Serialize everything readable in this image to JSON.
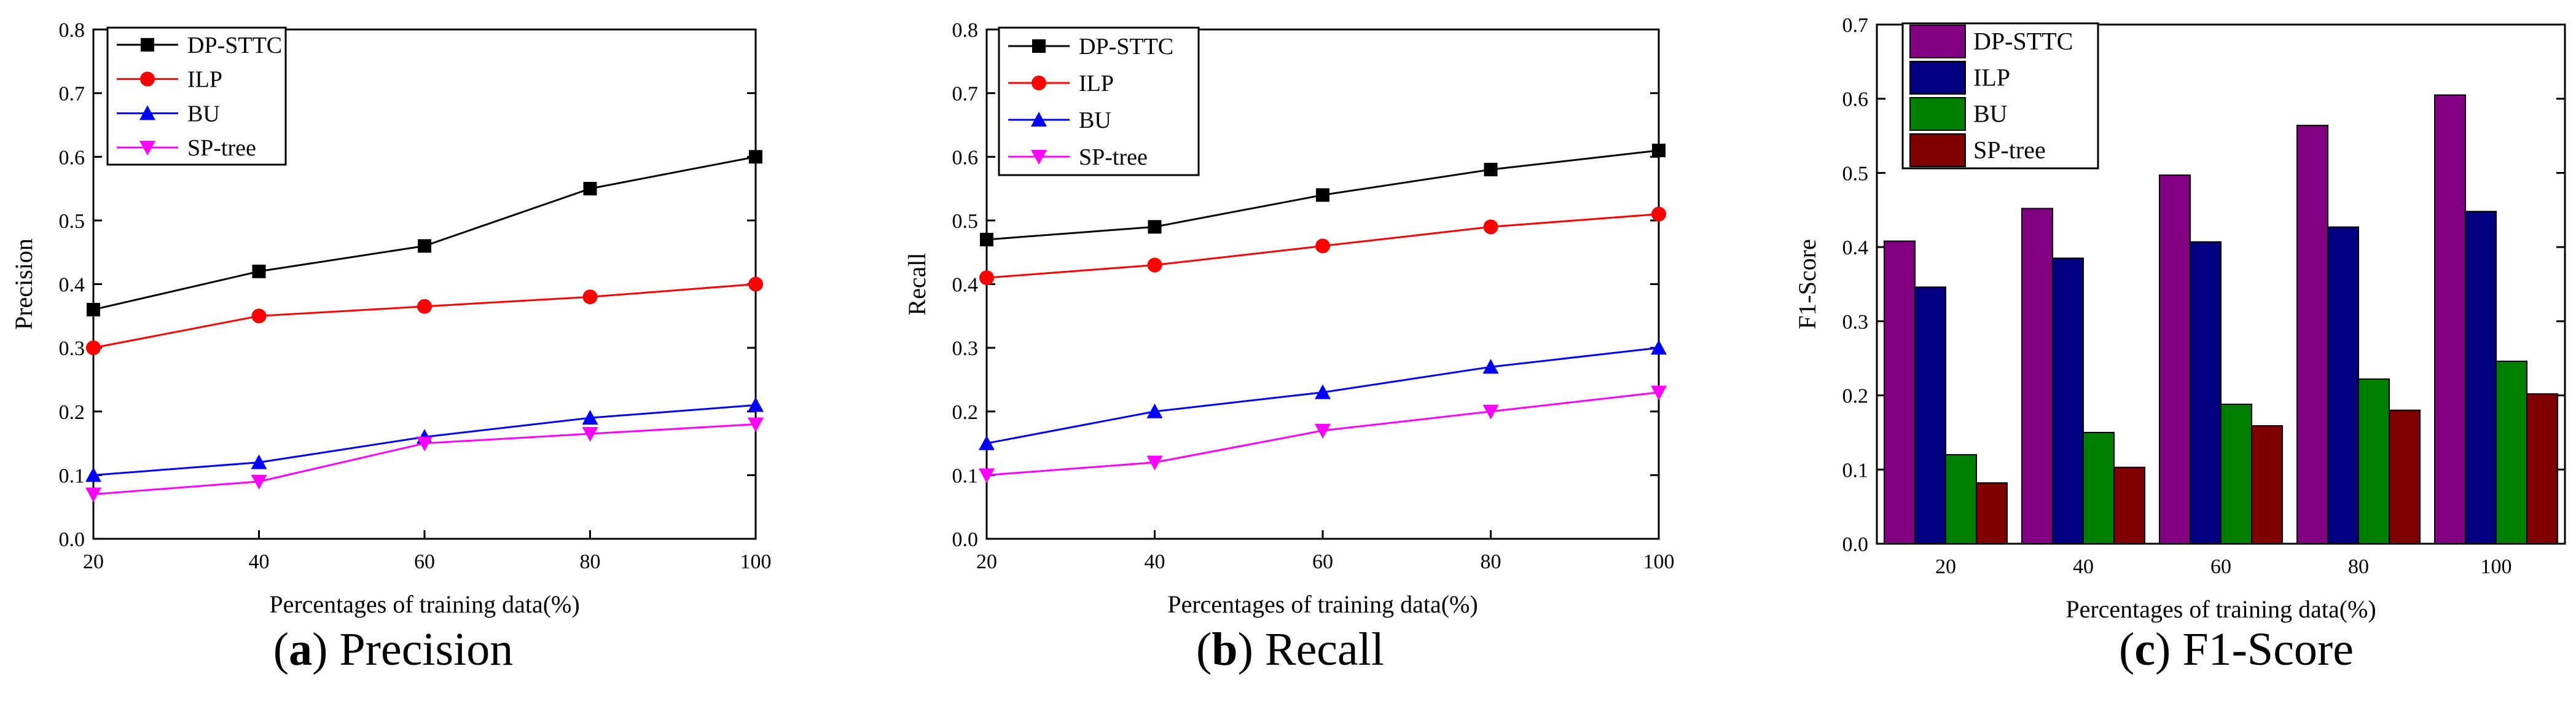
{
  "colors": {
    "DP-STTC": "#000000",
    "ILP": "#ff0000",
    "BU": "#0000ff",
    "SP-tree": "#ff00ff",
    "bar_DP-STTC": "#800080",
    "bar_ILP": "#000080",
    "bar_BU": "#008000",
    "bar_SP-tree": "#800000"
  },
  "chart_data": [
    {
      "id": "precision",
      "type": "line",
      "caption_letter": "a",
      "caption_rest": " Precision",
      "xlabel": "Percentages of training data(%)",
      "ylabel": "Precision",
      "x": [
        20,
        40,
        60,
        80,
        100
      ],
      "xticks": [
        "20",
        "40",
        "60",
        "80",
        "100"
      ],
      "ylim": [
        0,
        0.8
      ],
      "yticks": [
        "0.0",
        "0.1",
        "0.2",
        "0.3",
        "0.4",
        "0.5",
        "0.6",
        "0.7",
        "0.8"
      ],
      "legend_position": "top-left",
      "series": [
        {
          "name": "DP-STTC",
          "marker": "square",
          "values": [
            0.36,
            0.42,
            0.46,
            0.55,
            0.6
          ]
        },
        {
          "name": "ILP",
          "marker": "circle",
          "values": [
            0.3,
            0.35,
            0.365,
            0.38,
            0.4
          ]
        },
        {
          "name": "BU",
          "marker": "triangle-up",
          "values": [
            0.1,
            0.12,
            0.16,
            0.19,
            0.21
          ]
        },
        {
          "name": "SP-tree",
          "marker": "triangle-down",
          "values": [
            0.07,
            0.09,
            0.15,
            0.165,
            0.18
          ]
        }
      ]
    },
    {
      "id": "recall",
      "type": "line",
      "caption_letter": "b",
      "caption_rest": " Recall",
      "xlabel": "Percentages of training data(%)",
      "ylabel": "Recall",
      "x": [
        20,
        40,
        60,
        80,
        100
      ],
      "xticks": [
        "20",
        "40",
        "60",
        "80",
        "100"
      ],
      "ylim": [
        0,
        0.8
      ],
      "yticks": [
        "0.0",
        "0.1",
        "0.2",
        "0.3",
        "0.4",
        "0.5",
        "0.6",
        "0.7",
        "0.8"
      ],
      "legend_position": "top-left",
      "series": [
        {
          "name": "DP-STTC",
          "marker": "square",
          "values": [
            0.47,
            0.49,
            0.54,
            0.58,
            0.61
          ]
        },
        {
          "name": "ILP",
          "marker": "circle",
          "values": [
            0.41,
            0.43,
            0.46,
            0.49,
            0.51
          ]
        },
        {
          "name": "BU",
          "marker": "triangle-up",
          "values": [
            0.15,
            0.2,
            0.23,
            0.27,
            0.3
          ]
        },
        {
          "name": "SP-tree",
          "marker": "triangle-down",
          "values": [
            0.1,
            0.12,
            0.17,
            0.2,
            0.23
          ]
        }
      ]
    },
    {
      "id": "f1",
      "type": "bar",
      "caption_letter": "c",
      "caption_rest": " F1-Score",
      "prefix": "(",
      "xlabel": "Percentages of training data(%)",
      "ylabel": "F1-Score",
      "categories": [
        "20",
        "40",
        "60",
        "80",
        "100"
      ],
      "ylim": [
        0,
        0.7
      ],
      "yticks": [
        "0.0",
        "0.1",
        "0.2",
        "0.3",
        "0.4",
        "0.5",
        "0.6",
        "0.7"
      ],
      "legend_position": "top-left",
      "series": [
        {
          "name": "DP-STTC",
          "values": [
            0.408,
            0.452,
            0.497,
            0.564,
            0.605
          ]
        },
        {
          "name": "ILP",
          "values": [
            0.346,
            0.385,
            0.407,
            0.427,
            0.448
          ]
        },
        {
          "name": "BU",
          "values": [
            0.12,
            0.15,
            0.188,
            0.222,
            0.246
          ]
        },
        {
          "name": "SP-tree",
          "values": [
            0.082,
            0.103,
            0.159,
            0.18,
            0.202
          ]
        }
      ]
    }
  ]
}
